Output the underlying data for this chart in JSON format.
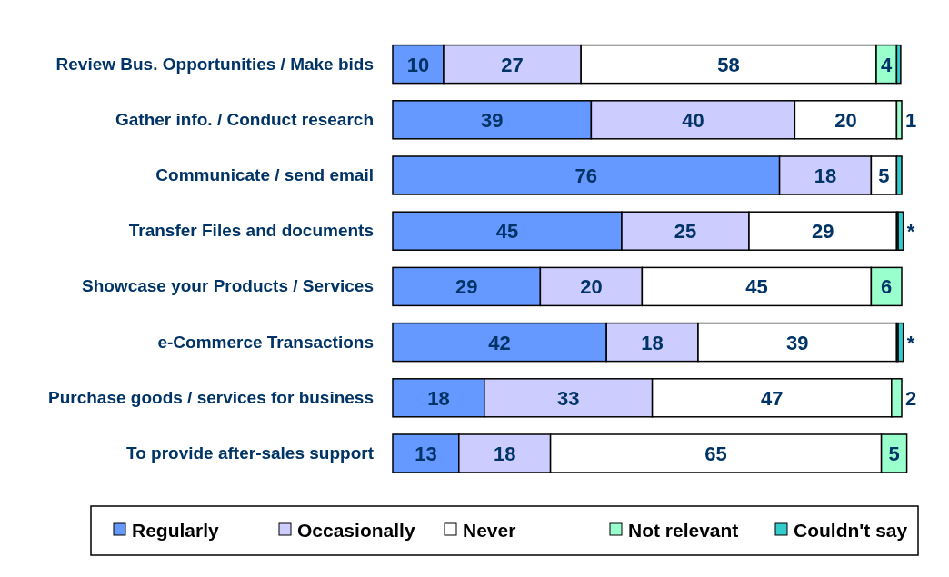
{
  "chart_data": {
    "type": "bar",
    "orientation": "horizontal",
    "stacked": true,
    "legend": "bottom",
    "data_labels": false,
    "categories": [
      "Review Bus. Opportunities / Make bids",
      "Gather info. / Conduct research",
      "Communicate / send email",
      "Transfer Files and documents",
      "Showcase your Products / Services",
      "e-Commerce Transactions",
      "Purchase goods / services for business",
      "To provide after-sales support"
    ],
    "series": [
      {
        "name": "Regularly",
        "color": "#6699ff",
        "values": [
          10,
          39,
          76,
          45,
          29,
          42,
          18,
          13
        ],
        "value_labels": [
          "10",
          "39",
          "76",
          "45",
          "29",
          "42",
          "18",
          "13"
        ]
      },
      {
        "name": "Occasionally",
        "color": "#ccccff",
        "values": [
          27,
          40,
          18,
          25,
          20,
          18,
          33,
          18
        ],
        "value_labels": [
          "27",
          "40",
          "18",
          "25",
          "20",
          "18",
          "33",
          "18"
        ]
      },
      {
        "name": "Never",
        "color": "#ffffff",
        "values": [
          58,
          20,
          5,
          29,
          45,
          39,
          47,
          65
        ],
        "value_labels": [
          "58",
          "20",
          "5",
          "29",
          "45",
          "39",
          "47",
          "65"
        ]
      },
      {
        "name": "Not relevant",
        "color": "#99ffcc",
        "values": [
          4,
          1,
          null,
          0.3,
          6,
          0.3,
          2,
          5
        ],
        "value_labels": [
          "4",
          "1",
          null,
          "*",
          "6",
          "*",
          "2",
          "5"
        ]
      },
      {
        "name": "Couldn't say",
        "color": "#33cccc",
        "values": [
          0.8,
          null,
          1,
          1,
          null,
          1,
          null,
          null
        ],
        "value_labels": [
          null,
          null,
          null,
          null,
          null,
          null,
          null,
          null
        ]
      }
    ]
  }
}
